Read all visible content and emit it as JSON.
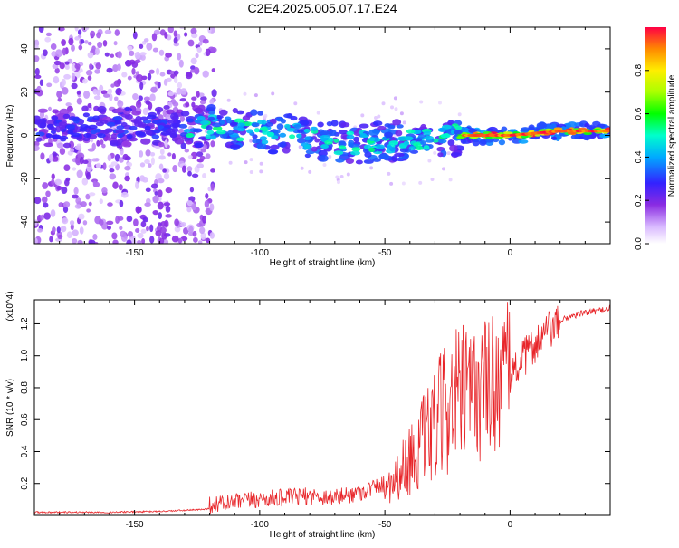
{
  "title": "C2E4.2025.005.07.17.E24",
  "chart_data": [
    {
      "type": "heatmap",
      "title": "C2E4.2025.005.07.17.E24",
      "xlabel": "Height of straight line (km)",
      "ylabel": "Frequency (Hz)",
      "xlim": [
        -190,
        40
      ],
      "ylim": [
        -50,
        50
      ],
      "xticks": [
        -150,
        -100,
        -50,
        0
      ],
      "xtick_labels": [
        "-150",
        "-100",
        "-50",
        "0"
      ],
      "yticks": [
        -40,
        -20,
        0,
        20,
        40
      ],
      "ytick_labels": [
        "-40",
        "-20",
        "0",
        "20",
        "40"
      ],
      "colorbar": {
        "label": "Normalized spectral amplitude",
        "range": [
          0,
          1
        ],
        "ticks": [
          0.0,
          0.2,
          0.4,
          0.6,
          0.8
        ],
        "tick_labels": [
          "0.0",
          "0.2",
          "0.4",
          "0.6",
          "0.8"
        ]
      },
      "ridge": [
        {
          "x": -190,
          "y": 4
        },
        {
          "x": -150,
          "y": 4
        },
        {
          "x": -120,
          "y": 4
        },
        {
          "x": -100,
          "y": 2
        },
        {
          "x": -80,
          "y": -1
        },
        {
          "x": -65,
          "y": -4
        },
        {
          "x": -50,
          "y": -3
        },
        {
          "x": -35,
          "y": -2
        },
        {
          "x": -20,
          "y": 0
        },
        {
          "x": 0,
          "y": 0
        },
        {
          "x": 20,
          "y": 2
        },
        {
          "x": 40,
          "y": 2
        }
      ]
    },
    {
      "type": "line",
      "xlabel": "Height of straight line (km)",
      "ylabel": "SNR (10 * v/v)",
      "yscale_label": "(x10^4)",
      "xlim": [
        -190,
        40
      ],
      "ylim": [
        0,
        1.35
      ],
      "xticks": [
        -150,
        -100,
        -50,
        0
      ],
      "xtick_labels": [
        "-150",
        "-100",
        "-50",
        "0"
      ],
      "yticks": [
        0.2,
        0.4,
        0.6,
        0.8,
        1.0,
        1.2
      ],
      "ytick_labels": [
        "0.2",
        "0.4",
        "0.6",
        "0.8",
        "1.0",
        "1.2"
      ],
      "series": [
        {
          "name": "SNR",
          "color": "#e8262a",
          "envelope_x": [
            -190,
            -160,
            -140,
            -125,
            -110,
            -100,
            -90,
            -80,
            -70,
            -60,
            -50,
            -45,
            -40,
            -35,
            -30,
            -25,
            -20,
            -15,
            -10,
            -5,
            0,
            5,
            10,
            15,
            20,
            25,
            30,
            35,
            40
          ],
          "envelope_y": [
            0.02,
            0.02,
            0.025,
            0.035,
            0.06,
            0.08,
            0.09,
            0.1,
            0.09,
            0.12,
            0.18,
            0.25,
            0.35,
            0.45,
            0.55,
            0.7,
            0.75,
            0.75,
            0.8,
            0.85,
            0.9,
            1.0,
            1.1,
            1.18,
            1.22,
            1.25,
            1.27,
            1.28,
            1.3
          ]
        }
      ]
    }
  ]
}
